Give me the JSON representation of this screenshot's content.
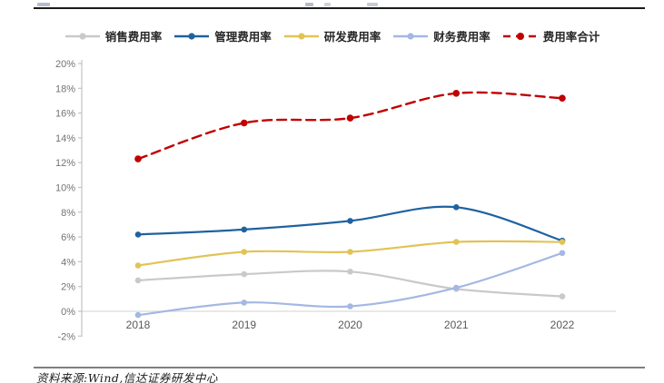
{
  "footer": {
    "source_text": "资料来源:Wind,信达证券研发中心"
  },
  "chart_data": {
    "type": "line",
    "categories": [
      "2018",
      "2019",
      "2020",
      "2021",
      "2022"
    ],
    "series": [
      {
        "key": "sales-expense-ratio",
        "name": "销售费用率",
        "color": "#c9c9c9",
        "dashed": false,
        "values": [
          2.5,
          3.0,
          3.2,
          1.8,
          1.2
        ]
      },
      {
        "key": "admin-expense-ratio",
        "name": "管理费用率",
        "color": "#1f62a0",
        "dashed": false,
        "values": [
          6.2,
          6.6,
          7.3,
          8.4,
          5.7
        ]
      },
      {
        "key": "rnd-expense-ratio",
        "name": "研发费用率",
        "color": "#e1c357",
        "dashed": false,
        "values": [
          3.7,
          4.8,
          4.8,
          5.6,
          5.6
        ]
      },
      {
        "key": "finance-expense-ratio",
        "name": "财务费用率",
        "color": "#a3b8e3",
        "dashed": false,
        "values": [
          -0.3,
          0.7,
          0.4,
          1.9,
          4.7
        ]
      },
      {
        "key": "total-expense-ratio",
        "name": "费用率合计",
        "color": "#c00000",
        "dashed": true,
        "values": [
          12.3,
          15.2,
          15.6,
          17.6,
          17.2
        ]
      }
    ],
    "title": "",
    "xlabel": "",
    "ylabel": "",
    "ylim": [
      -2,
      20
    ],
    "y_ticks": [
      {
        "v": 20,
        "label": "20%"
      },
      {
        "v": 18,
        "label": "18%"
      },
      {
        "v": 16,
        "label": "16%"
      },
      {
        "v": 14,
        "label": "14%"
      },
      {
        "v": 12,
        "label": "12%"
      },
      {
        "v": 10,
        "label": "10%"
      },
      {
        "v": 8,
        "label": "8%"
      },
      {
        "v": 6,
        "label": "6%"
      },
      {
        "v": 4,
        "label": "4%"
      },
      {
        "v": 2,
        "label": "2%"
      },
      {
        "v": 0,
        "label": "0%"
      },
      {
        "v": -2,
        "label": "-2%"
      }
    ],
    "grid": "zero-line-only",
    "legend_position": "top"
  }
}
